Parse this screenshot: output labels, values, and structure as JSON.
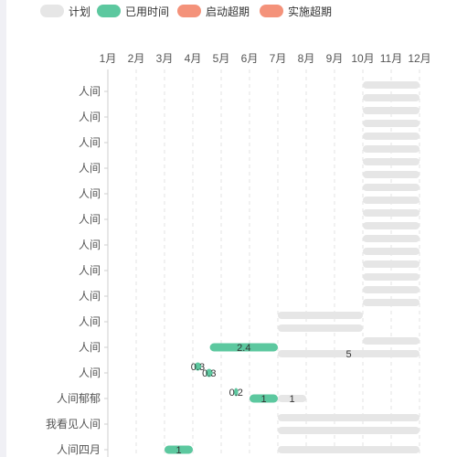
{
  "legend": {
    "items": [
      {
        "label": "计划",
        "color": "#e6e6e6"
      },
      {
        "label": "已用时间",
        "color": "#5cc89f"
      },
      {
        "label": "启动超期",
        "color": "#f4927a"
      },
      {
        "label": "实施超期",
        "color": "#f4927a"
      }
    ]
  },
  "chart_data": {
    "type": "bar",
    "orientation": "horizontal-gantt",
    "x_ticks": [
      "1月",
      "2月",
      "3月",
      "4月",
      "5月",
      "6月",
      "7月",
      "8月",
      "9月",
      "10月",
      "11月",
      "12月"
    ],
    "xlim_months": [
      1,
      12
    ],
    "grid": "vertical dashed",
    "legend_position": "top-left",
    "colors": {
      "plan": "#e6e6e6",
      "used": "#5cc89f",
      "overdue": "#f4927a"
    },
    "categories": [
      "人间",
      "人间",
      "人间",
      "人间",
      "人间",
      "人间",
      "人间",
      "人间",
      "人间",
      "人间",
      "人间",
      "人间",
      "人间郁郁",
      "我看见人间",
      "人间四月"
    ],
    "rows": [
      {
        "category": "人间",
        "plan": [
          [
            10,
            12
          ],
          [
            10,
            12
          ]
        ],
        "used": []
      },
      {
        "category": "人间",
        "plan": [
          [
            10,
            12
          ],
          [
            10,
            12
          ]
        ],
        "used": []
      },
      {
        "category": "人间",
        "plan": [
          [
            10,
            12
          ],
          [
            10,
            12
          ]
        ],
        "used": []
      },
      {
        "category": "人间",
        "plan": [
          [
            10,
            12
          ],
          [
            10,
            12
          ]
        ],
        "used": []
      },
      {
        "category": "人间",
        "plan": [
          [
            10,
            12
          ],
          [
            10,
            12
          ]
        ],
        "used": []
      },
      {
        "category": "人间",
        "plan": [
          [
            10,
            12
          ],
          [
            10,
            12
          ]
        ],
        "used": []
      },
      {
        "category": "人间",
        "plan": [
          [
            10,
            12
          ],
          [
            10,
            12
          ]
        ],
        "used": []
      },
      {
        "category": "人间",
        "plan": [
          [
            10,
            12
          ],
          [
            10,
            12
          ]
        ],
        "used": []
      },
      {
        "category": "人间",
        "plan": [
          [
            10,
            12
          ],
          [
            10,
            12
          ]
        ],
        "used": []
      },
      {
        "category": "人间",
        "plan": [
          [
            7,
            10
          ],
          [
            7,
            10
          ]
        ],
        "used": []
      },
      {
        "category": "人间",
        "plan": [
          [
            10,
            12
          ],
          [
            7,
            12
          ]
        ],
        "used": [
          {
            "range": [
              4.6,
              7
            ],
            "value": "2.4"
          }
        ],
        "plan_value": "5"
      },
      {
        "category": "人间",
        "plan": [],
        "used": [
          {
            "range": [
              4.05,
              4.3
            ],
            "value": "0.3",
            "offset": -0.5
          },
          {
            "range": [
              4.45,
              4.7
            ],
            "value": "0.3",
            "offset": 0
          }
        ]
      },
      {
        "category": "人间郁郁",
        "plan": [
          [
            7,
            8
          ]
        ],
        "plan_value": "1",
        "used": [
          {
            "range": [
              5.45,
              5.6
            ],
            "value": "0.2",
            "offset": -0.5
          },
          {
            "range": [
              6,
              7
            ],
            "value": "1",
            "offset": 0
          }
        ]
      },
      {
        "category": "我看见人间",
        "plan": [
          [
            7,
            12
          ],
          [
            7,
            12
          ]
        ],
        "used": []
      },
      {
        "category": "人间四月",
        "plan": [
          [
            7,
            12
          ]
        ],
        "used": [
          {
            "range": [
              3,
              4
            ],
            "value": "1",
            "offset": 0
          }
        ]
      }
    ]
  }
}
